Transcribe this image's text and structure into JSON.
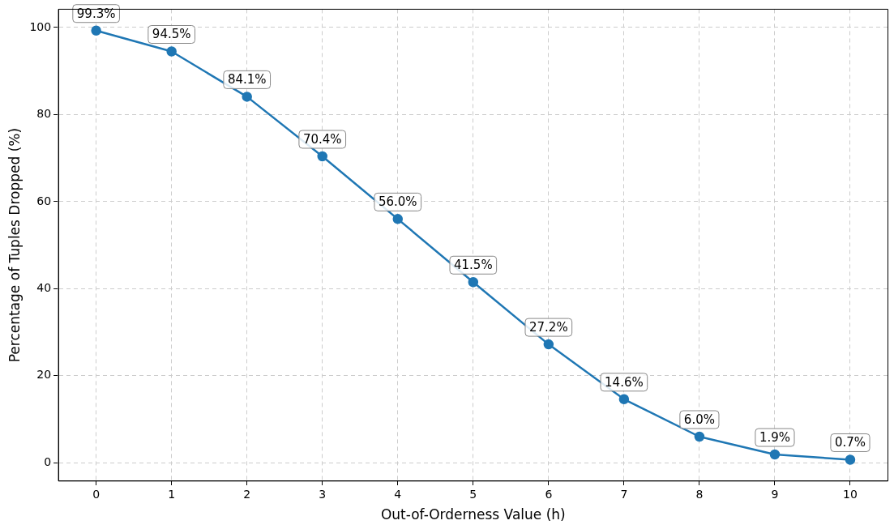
{
  "chart_data": {
    "type": "line",
    "xlabel": "Out-of-Orderness Value (h)",
    "ylabel": "Percentage of Tuples Dropped (%)",
    "x": [
      0,
      1,
      2,
      3,
      4,
      5,
      6,
      7,
      8,
      9,
      10
    ],
    "series": [
      {
        "color": "#1f77b4",
        "values": [
          99.3,
          94.5,
          84.1,
          70.4,
          56.0,
          41.5,
          27.2,
          14.6,
          6.0,
          1.9,
          0.7
        ],
        "value_labels": [
          "99.3%",
          "94.5%",
          "84.1%",
          "70.4%",
          "56.0%",
          "41.5%",
          "27.2%",
          "14.6%",
          "6.0%",
          "1.9%",
          "0.7%"
        ]
      }
    ],
    "xlim": [
      -0.5,
      10.5
    ],
    "xticks": [
      0,
      1,
      2,
      3,
      4,
      5,
      6,
      7,
      8,
      9,
      10
    ],
    "ylim": [
      -4.2,
      104.2
    ],
    "yticks": [
      0,
      20,
      40,
      60,
      80,
      100
    ],
    "grid": true,
    "marker": "circle",
    "legend": false
  }
}
